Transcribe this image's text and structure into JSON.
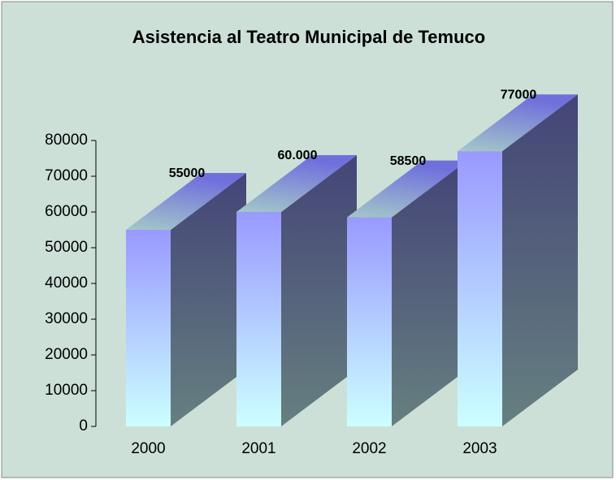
{
  "chart_data": {
    "type": "bar3d",
    "title": "Asistencia al Teatro Municipal de Temuco",
    "categories": [
      "2000",
      "2001",
      "2002",
      "2003"
    ],
    "values": [
      55000,
      60000,
      58500,
      77000
    ],
    "value_labels": [
      "55000",
      "60.000",
      "58500",
      "77000"
    ],
    "ylim": [
      0,
      80000
    ],
    "yticks": [
      0,
      10000,
      20000,
      30000,
      40000,
      50000,
      60000,
      70000,
      80000
    ],
    "grid": false
  }
}
